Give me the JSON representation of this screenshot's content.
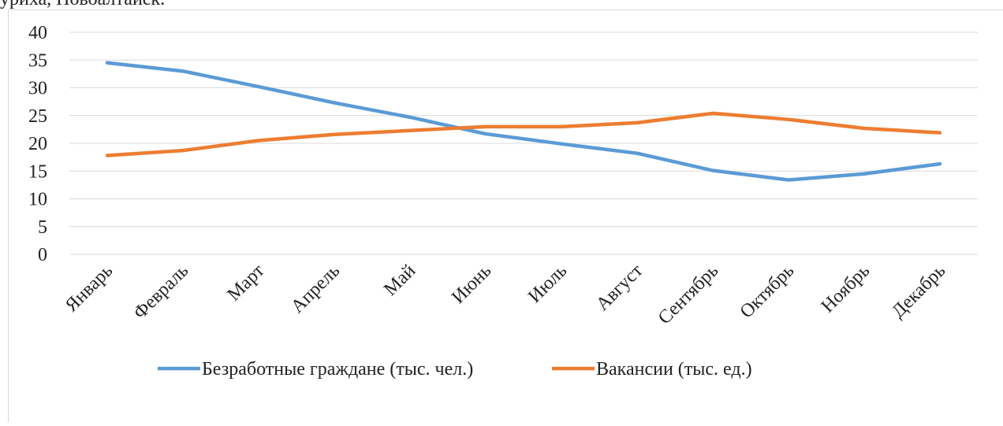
{
  "caption": "уриха, Новоалтайск.",
  "chart_data": {
    "type": "line",
    "categories": [
      "Январь",
      "Февраль",
      "Март",
      "Апрель",
      "Май",
      "Июнь",
      "Июль",
      "Август",
      "Сентябрь",
      "Октябрь",
      "Ноябрь",
      "Декабрь"
    ],
    "series": [
      {
        "name": "Безработные граждане (тыс. чел.)",
        "color": "#5b9bd5",
        "values": [
          34.5,
          33,
          30.2,
          27.3,
          24.7,
          21.7,
          19.9,
          18.2,
          15.1,
          13.4,
          14.5,
          16.3
        ]
      },
      {
        "name": "Вакансии (тыс. ед.)",
        "color": "#ed7d31",
        "values": [
          17.8,
          18.7,
          20.5,
          21.6,
          22.3,
          23,
          23,
          23.7,
          25.4,
          24.3,
          22.7,
          21.9
        ]
      }
    ],
    "ylim": [
      0,
      40
    ],
    "yticks": [
      0,
      5,
      10,
      15,
      20,
      25,
      30,
      35,
      40
    ],
    "grid": true,
    "legend": "bottom"
  }
}
